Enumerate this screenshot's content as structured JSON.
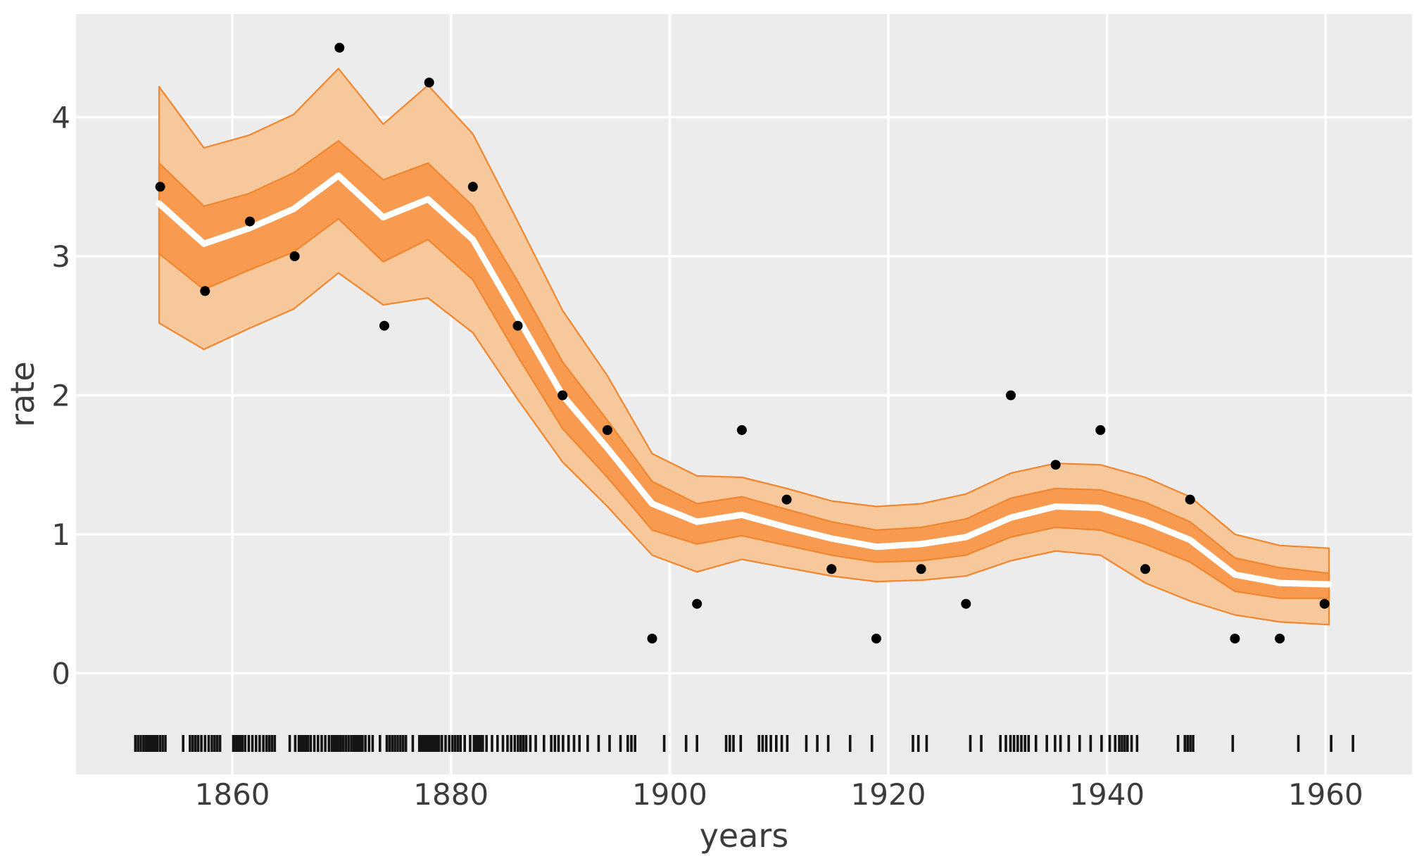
{
  "figure": {
    "kind": "statistical line chart with credible bands, scatter and rug",
    "background": "#ffffff"
  },
  "plot": {
    "background_color": "#ececec",
    "gridline_color": "#ffffff",
    "mean_line_color": "#ffffff",
    "inner_band_fill": "#f89b51",
    "outer_band_fill": "#f8c89d",
    "band_edge_color": "#f0862e",
    "scatter_color": "#000000",
    "rug_color": "#141414",
    "tick_label_color": "#3c3c3c"
  },
  "chart_data": {
    "type": "line",
    "title": "",
    "xlabel": "years",
    "ylabel": "rate",
    "xlim": [
      1845.7,
      1967.9
    ],
    "ylim": [
      -0.727,
      4.742
    ],
    "x_ticks": [
      1860,
      1880,
      1900,
      1920,
      1940,
      1960
    ],
    "y_ticks": [
      0,
      1,
      2,
      3,
      4
    ],
    "grid": true,
    "legend": "none",
    "knot_years": [
      1853.3,
      1857.4,
      1861.5,
      1865.6,
      1869.7,
      1873.8,
      1877.9,
      1882.0,
      1886.1,
      1890.2,
      1894.3,
      1898.4,
      1902.5,
      1906.6,
      1910.7,
      1914.8,
      1918.9,
      1923.0,
      1927.1,
      1931.2,
      1935.3,
      1939.4,
      1943.5,
      1947.6,
      1951.7,
      1955.8,
      1960.3
    ],
    "series": [
      {
        "name": "posterior mean rate",
        "type": "line",
        "y": [
          3.38,
          3.09,
          3.2,
          3.34,
          3.58,
          3.28,
          3.41,
          3.12,
          2.56,
          2.0,
          1.62,
          1.22,
          1.09,
          1.14,
          1.05,
          0.97,
          0.91,
          0.93,
          0.98,
          1.12,
          1.2,
          1.19,
          1.09,
          0.96,
          0.71,
          0.65,
          0.64
        ]
      },
      {
        "name": "inner credible band",
        "type": "band",
        "lo": [
          3.02,
          2.76,
          2.9,
          3.03,
          3.27,
          2.96,
          3.12,
          2.83,
          2.28,
          1.76,
          1.41,
          1.03,
          0.93,
          0.99,
          0.92,
          0.85,
          0.8,
          0.81,
          0.85,
          0.98,
          1.05,
          1.03,
          0.93,
          0.8,
          0.59,
          0.54,
          0.54
        ],
        "hi": [
          3.67,
          3.36,
          3.45,
          3.6,
          3.83,
          3.55,
          3.67,
          3.36,
          2.82,
          2.24,
          1.82,
          1.38,
          1.22,
          1.27,
          1.18,
          1.09,
          1.03,
          1.05,
          1.11,
          1.26,
          1.33,
          1.32,
          1.23,
          1.09,
          0.83,
          0.76,
          0.72
        ]
      },
      {
        "name": "outer credible band",
        "type": "band",
        "lo": [
          2.52,
          2.33,
          2.48,
          2.62,
          2.88,
          2.65,
          2.7,
          2.45,
          1.97,
          1.52,
          1.2,
          0.85,
          0.73,
          0.82,
          0.76,
          0.7,
          0.66,
          0.67,
          0.7,
          0.81,
          0.88,
          0.85,
          0.65,
          0.52,
          0.42,
          0.37,
          0.35
        ],
        "hi": [
          4.22,
          3.78,
          3.87,
          4.02,
          4.35,
          3.95,
          4.23,
          3.88,
          3.25,
          2.61,
          2.14,
          1.58,
          1.42,
          1.41,
          1.33,
          1.24,
          1.2,
          1.22,
          1.29,
          1.44,
          1.51,
          1.5,
          1.41,
          1.27,
          1.0,
          0.92,
          0.9
        ]
      },
      {
        "name": "binned disaster rate",
        "type": "scatter",
        "points": [
          [
            1853.4,
            3.5
          ],
          [
            1857.5,
            2.75
          ],
          [
            1861.6,
            3.25
          ],
          [
            1865.7,
            3.0
          ],
          [
            1869.8,
            4.5
          ],
          [
            1873.9,
            2.5
          ],
          [
            1878.0,
            4.25
          ],
          [
            1882.0,
            3.5
          ],
          [
            1886.1,
            2.5
          ],
          [
            1890.2,
            2.0
          ],
          [
            1894.3,
            1.75
          ],
          [
            1898.4,
            0.25
          ],
          [
            1902.5,
            0.5
          ],
          [
            1906.6,
            1.75
          ],
          [
            1910.7,
            1.25
          ],
          [
            1914.8,
            0.75
          ],
          [
            1918.9,
            0.25
          ],
          [
            1923.0,
            0.75
          ],
          [
            1927.1,
            0.5
          ],
          [
            1931.2,
            2.0
          ],
          [
            1935.3,
            1.5
          ],
          [
            1939.4,
            1.75
          ],
          [
            1943.5,
            0.75
          ],
          [
            1947.6,
            1.25
          ],
          [
            1951.7,
            0.25
          ],
          [
            1955.8,
            0.25
          ],
          [
            1959.9,
            0.5
          ]
        ]
      },
      {
        "name": "disaster events rug",
        "type": "rug",
        "first_year": 1851,
        "events_per_year": [
          4,
          5,
          4,
          0,
          1,
          4,
          3,
          4,
          0,
          6,
          3,
          3,
          4,
          0,
          2,
          6,
          3,
          3,
          5,
          4,
          5,
          3,
          1,
          4,
          4,
          1,
          5,
          5,
          3,
          4,
          2,
          5,
          2,
          2,
          3,
          4,
          2,
          1,
          3,
          2,
          2,
          1,
          1,
          1,
          1,
          3,
          0,
          0,
          1,
          0,
          1,
          1,
          0,
          0,
          3,
          1,
          0,
          3,
          2,
          2,
          0,
          1,
          1,
          1,
          0,
          1,
          0,
          1,
          0,
          0,
          0,
          2,
          1,
          0,
          0,
          0,
          1,
          1,
          0,
          2,
          3,
          3,
          1,
          1,
          2,
          1,
          1,
          1,
          1,
          2,
          4,
          2,
          0,
          0,
          0,
          1,
          4,
          0,
          0,
          0,
          1,
          0,
          0,
          0,
          0,
          0,
          1,
          0,
          0,
          1,
          0,
          1
        ]
      }
    ]
  }
}
